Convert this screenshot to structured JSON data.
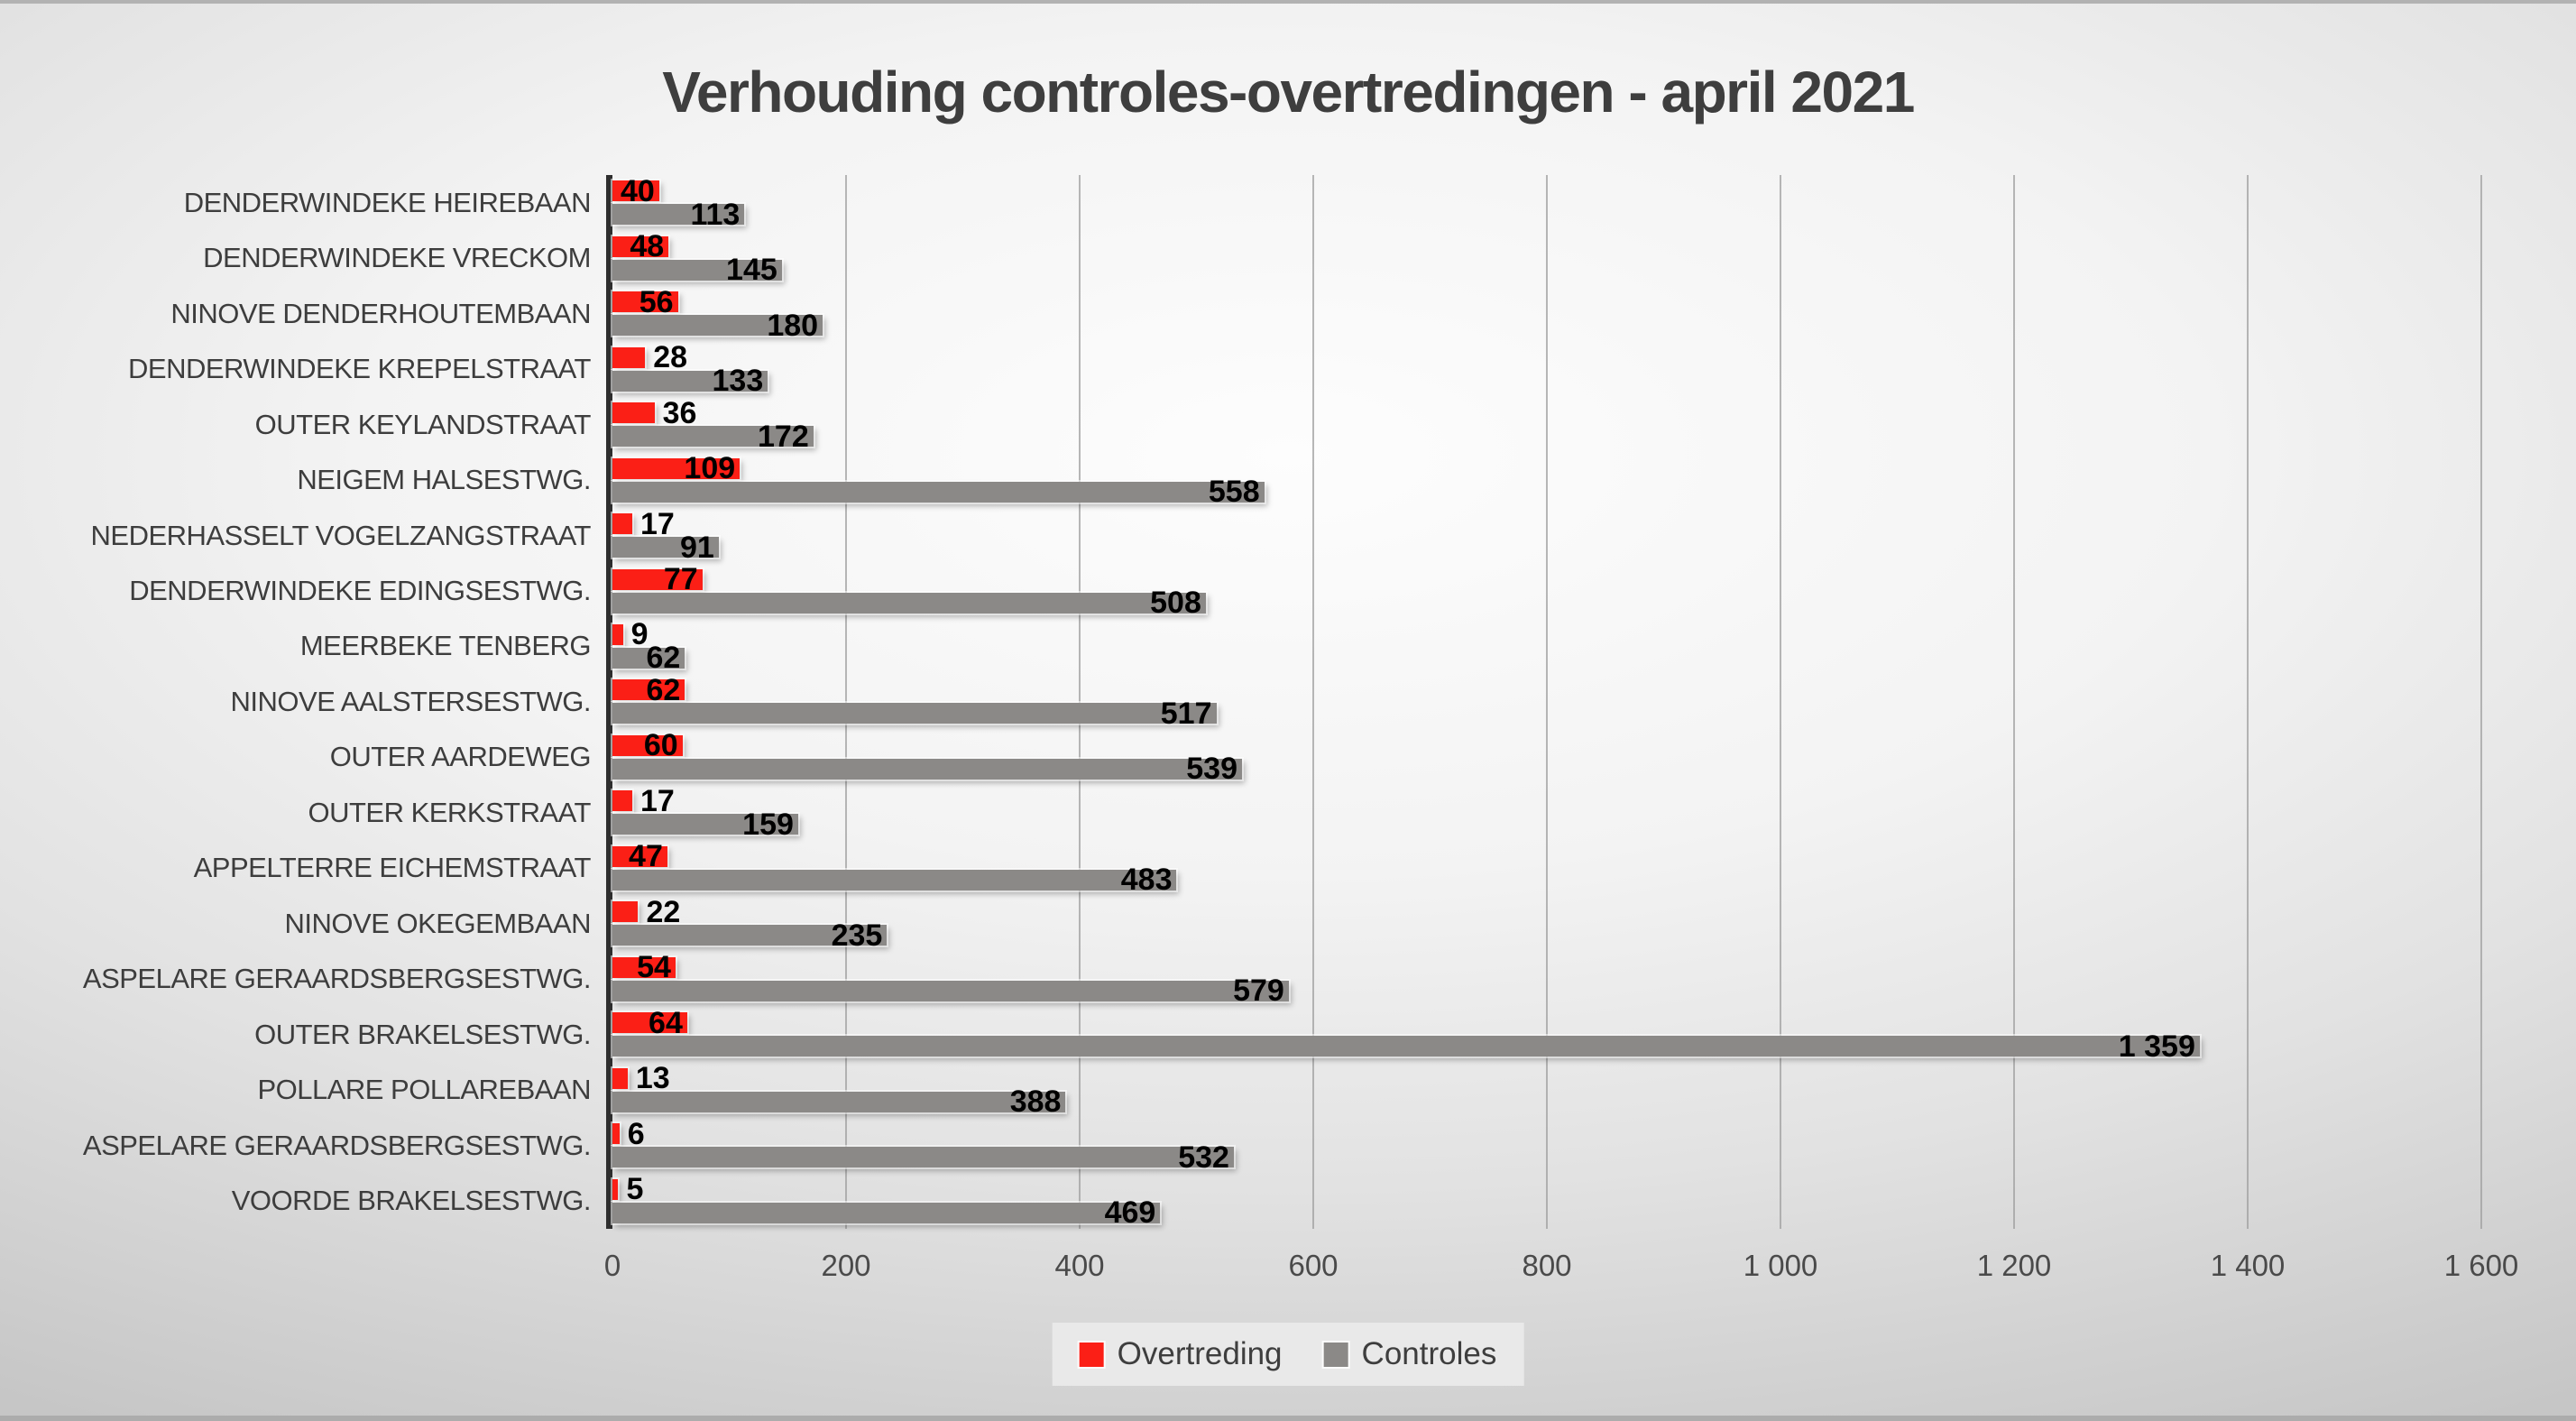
{
  "title": "Verhouding controles-overtredingen - april 2021",
  "legend": {
    "items": [
      {
        "label": "Overtreding",
        "color": "#fb1f16"
      },
      {
        "label": "Controles",
        "color": "#8b8987"
      }
    ],
    "position": "bottom"
  },
  "chart_data": {
    "type": "bar",
    "orientation": "horizontal",
    "title": "Verhouding controles-overtredingen - april 2021",
    "categories": [
      "DENDERWINDEKE HEIREBAAN",
      "DENDERWINDEKE VRECKOM",
      "NINOVE DENDERHOUTEMBAAN",
      "DENDERWINDEKE KREPELSTRAAT",
      "OUTER KEYLANDSTRAAT",
      "NEIGEM HALSESTWG.",
      "NEDERHASSELT VOGELZANGSTRAAT",
      "DENDERWINDEKE EDINGSESTWG.",
      "MEERBEKE TENBERG",
      "NINOVE AALSTERSESTWG.",
      "OUTER AARDEWEG",
      "OUTER KERKSTRAAT",
      "APPELTERRE EICHEMSTRAAT",
      "NINOVE OKEGEMBAAN",
      "ASPELARE GERAARDSBERGSESTWG.",
      "OUTER BRAKELSESTWG.",
      "POLLARE POLLAREBAAN",
      "ASPELARE GERAARDSBERGSESTWG.",
      "VOORDE BRAKELSESTWG."
    ],
    "series": [
      {
        "name": "Overtreding",
        "color": "#fb1f16",
        "values": [
          40,
          48,
          56,
          28,
          36,
          109,
          17,
          77,
          9,
          62,
          60,
          17,
          47,
          22,
          54,
          64,
          13,
          6,
          5
        ]
      },
      {
        "name": "Controles",
        "color": "#8b8987",
        "values": [
          113,
          145,
          180,
          133,
          172,
          558,
          91,
          508,
          62,
          517,
          539,
          159,
          483,
          235,
          579,
          1359,
          388,
          532,
          469
        ]
      }
    ],
    "xlim": [
      0,
      1600
    ],
    "x_ticks": [
      0,
      200,
      400,
      600,
      800,
      1000,
      1200,
      1400,
      1600
    ],
    "x_tick_labels": [
      "0",
      "200",
      "400",
      "600",
      "800",
      "1 000",
      "1 200",
      "1 400",
      "1 600"
    ],
    "grid": true,
    "value_labels": true,
    "number_format": "space-thousands",
    "legend_position": "bottom"
  },
  "colors": {
    "overtreding": "#fb1f16",
    "controles": "#8b8987",
    "axis_line": "#2e2e2e",
    "gridline": "#9f9f9f",
    "title_text": "#3e3e3e",
    "tick_text": "#4a4a4a"
  }
}
